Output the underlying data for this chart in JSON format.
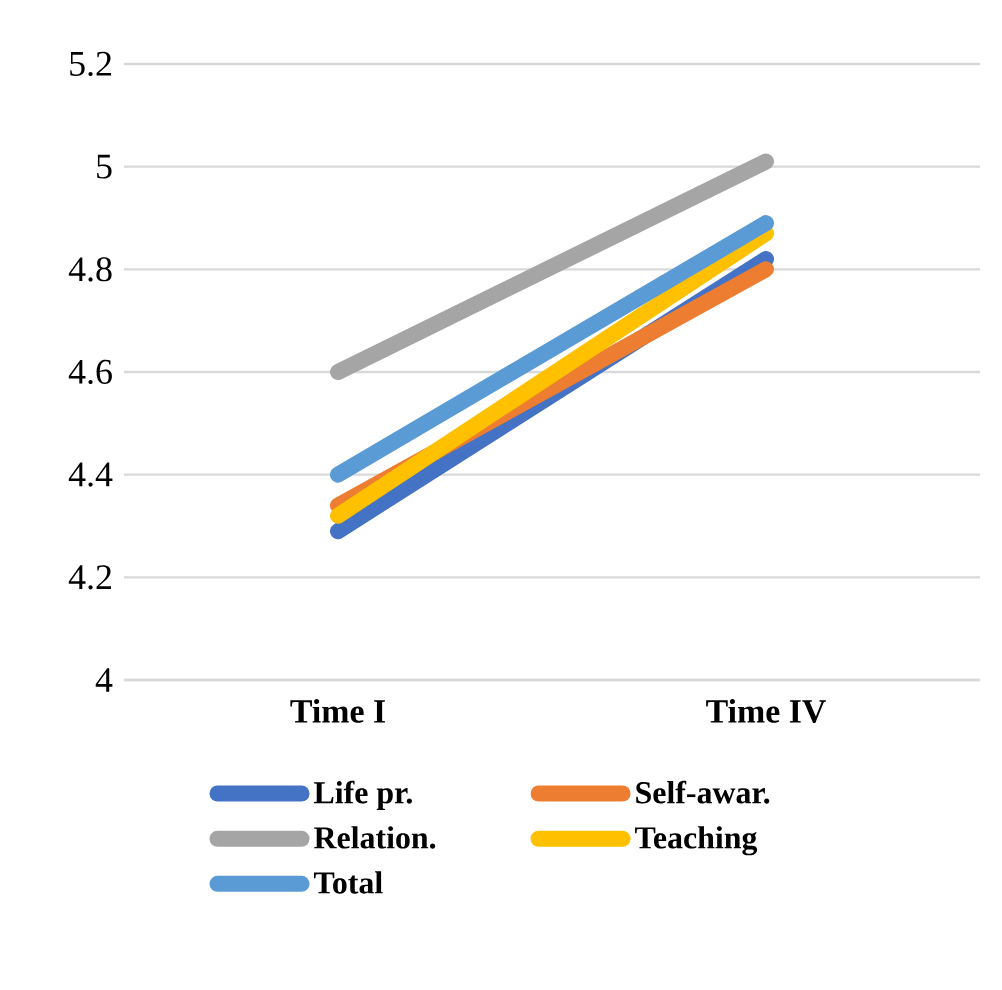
{
  "chart_data": {
    "type": "line",
    "categories": [
      "Time I",
      "Time IV"
    ],
    "series": [
      {
        "name": "Life pr.",
        "color": "#4472c4",
        "values": [
          4.29,
          4.82
        ]
      },
      {
        "name": "Self-awar.",
        "color": "#ed7d31",
        "values": [
          4.34,
          4.8
        ]
      },
      {
        "name": "Relation.",
        "color": "#a5a5a5",
        "values": [
          4.6,
          5.01
        ]
      },
      {
        "name": "Teaching",
        "color": "#ffc000",
        "values": [
          4.32,
          4.87
        ]
      },
      {
        "name": "Total",
        "color": "#5b9bd5",
        "values": [
          4.4,
          4.89
        ]
      }
    ],
    "ylim": [
      4,
      5.2
    ],
    "yticks": [
      4,
      4.2,
      4.4,
      4.6,
      4.8,
      5,
      5.2
    ],
    "grid": "y",
    "legend": "bottom",
    "marker": "none",
    "line_style": "solid"
  }
}
